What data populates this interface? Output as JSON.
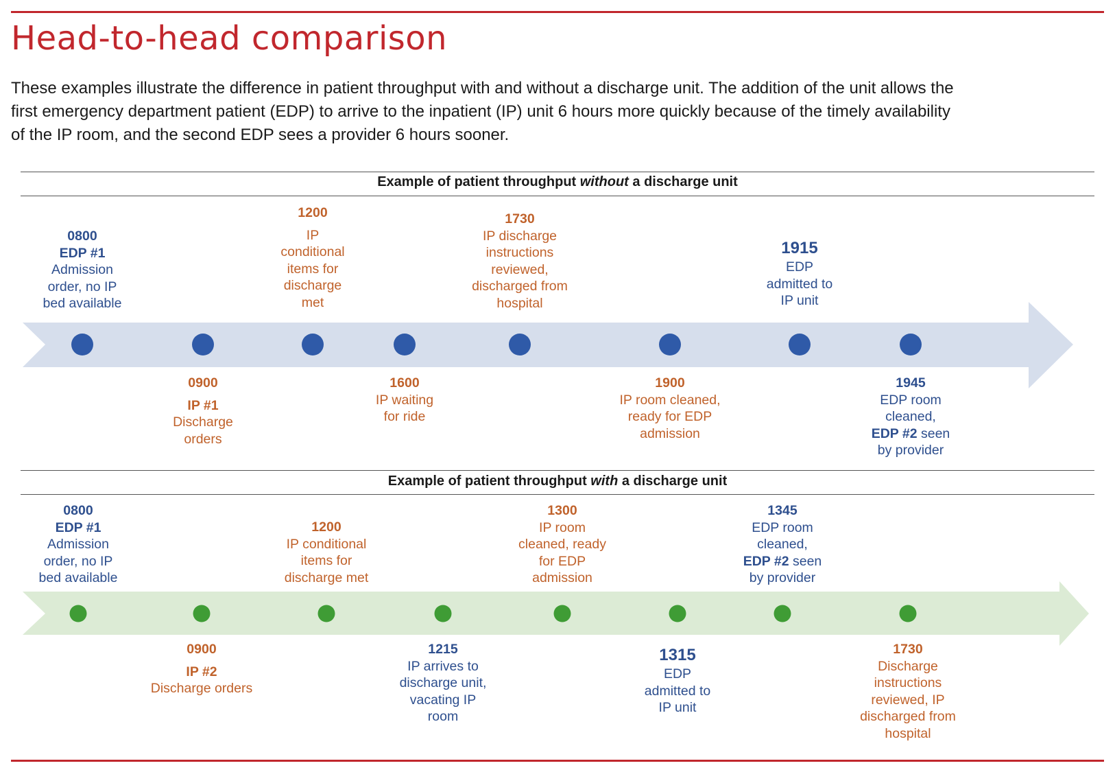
{
  "title": "Head-to-head comparison",
  "intro": [
    "These examples illustrate the difference in patient throughput with and without a discharge unit. The addition of the unit allows the",
    "first emergency department patient (EDP) to arrive to the inpatient (IP) unit 6 hours more quickly because of the timely availability",
    "of the IP room, and the second EDP sees a provider 6 hours sooner."
  ],
  "colors": {
    "accent_red": "#c1272d",
    "edp_blue": "#2e4f8e",
    "ip_orange": "#c0622b",
    "band_blue": "#d6deec",
    "dot_blue": "#2f5aa8",
    "band_green": "#dcebd5",
    "dot_green": "#3f9c35"
  },
  "section1": {
    "title_pre": "Example of patient throughput ",
    "title_em": "without",
    "title_post": " a discharge unit",
    "events": {
      "e0800": {
        "time": "0800",
        "who": "EDP #1",
        "lines": [
          "Admission",
          "order, no IP",
          "bed available"
        ]
      },
      "e0900": {
        "time": "0900",
        "who": "IP #1",
        "lines": [
          "Discharge",
          "orders"
        ]
      },
      "e1200": {
        "time": "1200",
        "lines": [
          "IP",
          "conditional",
          "items for",
          "discharge",
          "met"
        ]
      },
      "e1600": {
        "time": "1600",
        "lines": [
          "IP waiting",
          "for ride"
        ]
      },
      "e1730": {
        "time": "1730",
        "lines": [
          "IP discharge",
          "instructions",
          "reviewed,",
          "discharged from",
          "hospital"
        ]
      },
      "e1900": {
        "time": "1900",
        "lines": [
          "IP room cleaned,",
          "ready for EDP",
          "admission"
        ]
      },
      "e1915": {
        "time": "1915",
        "lines": [
          "EDP",
          "admitted to",
          "IP unit"
        ]
      },
      "e1945": {
        "time": "1945",
        "lines": [
          "EDP room",
          "cleaned,"
        ],
        "bold_part": "EDP #2",
        "rest": " seen",
        "last": "by provider"
      }
    }
  },
  "section2": {
    "title_pre": "Example of patient throughput ",
    "title_em": "with",
    "title_post": " a discharge unit",
    "events": {
      "e0800": {
        "time": "0800",
        "who": "EDP #1",
        "lines": [
          "Admission",
          "order, no IP",
          "bed available"
        ]
      },
      "e0900": {
        "time": "0900",
        "who": "IP #2",
        "lines": [
          "Discharge orders"
        ]
      },
      "e1200": {
        "time": "1200",
        "lines": [
          "IP conditional",
          "items for",
          "discharge met"
        ]
      },
      "e1215": {
        "time": "1215",
        "lines": [
          "IP arrives to",
          "discharge unit,",
          "vacating IP",
          "room"
        ]
      },
      "e1300": {
        "time": "1300",
        "lines": [
          "IP room",
          "cleaned, ready",
          "for EDP",
          "admission"
        ]
      },
      "e1315": {
        "time": "1315",
        "lines": [
          "EDP",
          "admitted to",
          "IP unit"
        ]
      },
      "e1345": {
        "time": "1345",
        "lines": [
          "EDP room",
          "cleaned,"
        ],
        "bold_part": "EDP #2",
        "rest": " seen",
        "last": "by provider"
      },
      "e1730": {
        "time": "1730",
        "lines": [
          "Discharge",
          "instructions",
          "reviewed, IP",
          "discharged from",
          "hospital"
        ]
      }
    }
  }
}
